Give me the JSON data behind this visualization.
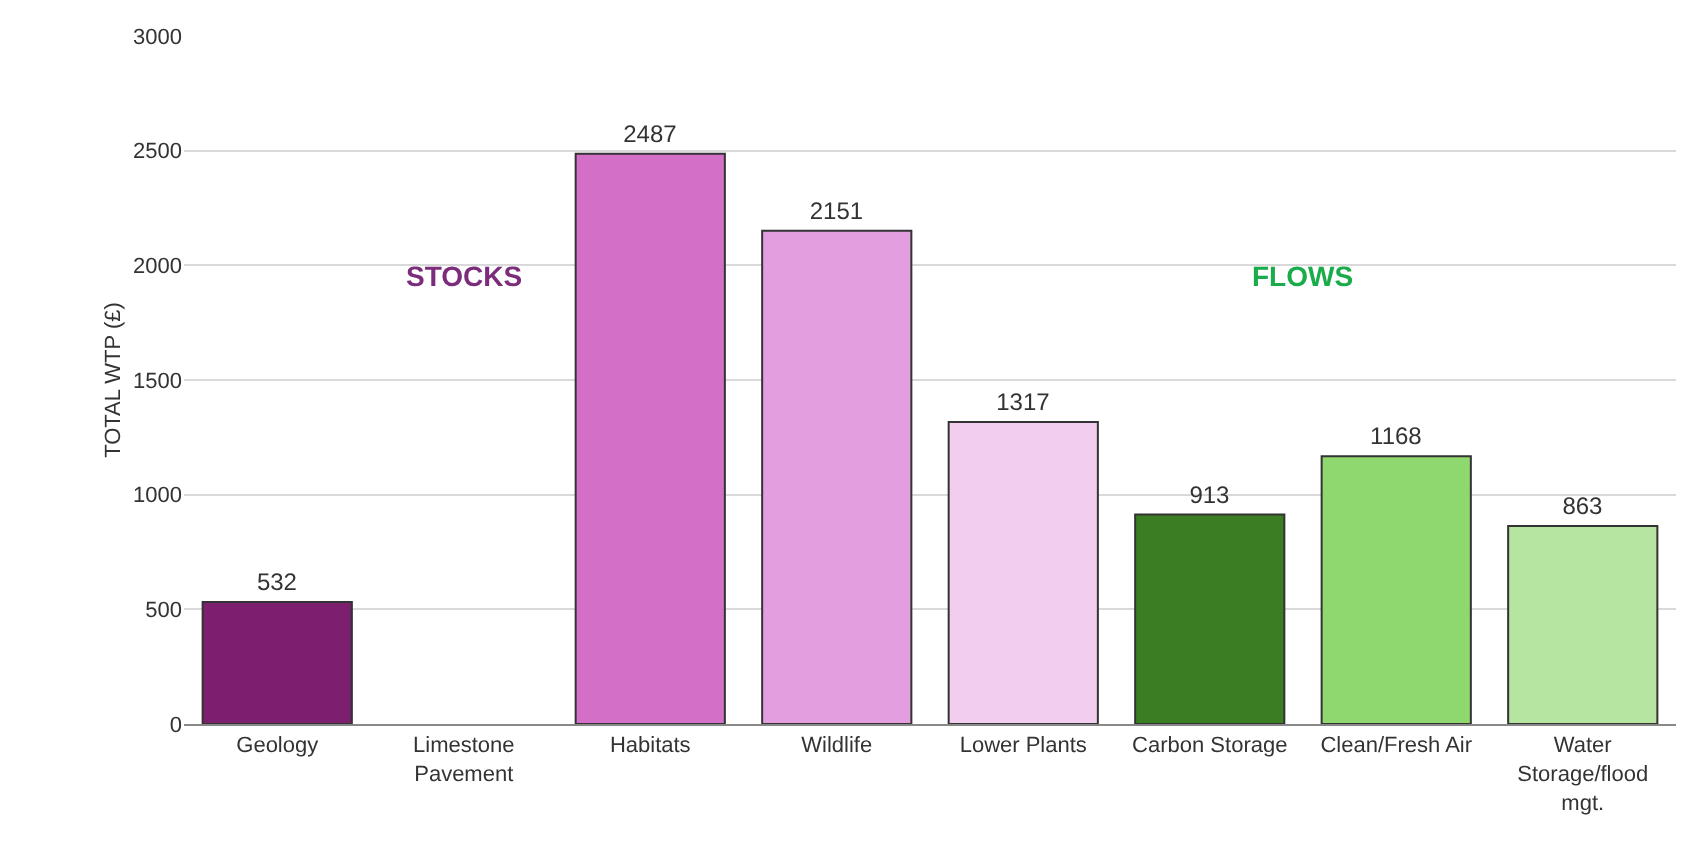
{
  "chart_data": {
    "type": "bar",
    "ylabel": "TOTAL WTP (£)",
    "categories": [
      "Geology",
      "Limestone Pavement",
      "Habitats",
      "Wildlife",
      "Lower Plants",
      "Carbon Storage",
      "Clean/Fresh Air",
      "Water Storage/flood mgt."
    ],
    "values": [
      532,
      null,
      2487,
      2151,
      1317,
      913,
      1168,
      863
    ],
    "colors": [
      "#7b1f6e",
      "#d9d9d9",
      "#d46fc8",
      "#e29ede",
      "#f2cdef",
      "#3a7d22",
      "#8fd870",
      "#b5e5a0"
    ],
    "ylim": [
      0,
      3000
    ],
    "yticks": [
      0,
      500,
      1000,
      1500,
      2000,
      2500,
      3000
    ],
    "grid": "y",
    "data_labels": true,
    "annotations": [
      "STOCKS",
      "FLOWS"
    ]
  }
}
